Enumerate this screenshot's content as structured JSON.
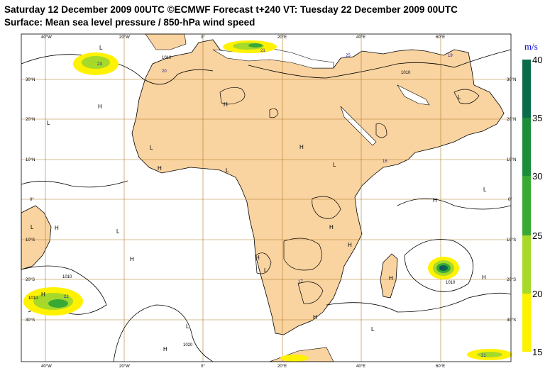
{
  "title_line1": "Saturday 12 December 2009 00UTC ©ECMWF Forecast t+240 VT: Tuesday 22 December 2009 00UTC",
  "title_line2": "Surface: Mean sea level pressure / 850-hPa wind speed",
  "colors": {
    "land": "#f9d3a0",
    "ocean": "#ffffff",
    "grid": "#b07a28",
    "coast": "#000000",
    "wind_15_20": "#fff200",
    "wind_20_25": "#a6d92a",
    "wind_25_30": "#39a935",
    "wind_30_35": "#1b8c3a",
    "wind_35_40": "#0a6b4a",
    "label_blue": "#1a1aa0"
  },
  "longitude_ticks": [
    "40°W",
    "20°W",
    "0°",
    "20°E",
    "40°E",
    "60°E"
  ],
  "latitude_ticks_left": [
    "30°N",
    "20°N",
    "10°N",
    "0°",
    "10°S",
    "20°S",
    "30°S"
  ],
  "latitude_ticks_right": [
    "30°N",
    "20°N",
    "10°N",
    "0°",
    "10°S",
    "20°S",
    "30°S"
  ],
  "pressure_centers": [
    "H",
    "H",
    "H",
    "H",
    "H",
    "H",
    "H",
    "H",
    "H",
    "H",
    "H",
    "H",
    "H",
    "H",
    "H",
    "L",
    "L",
    "L",
    "L",
    "L",
    "L",
    "L",
    "L",
    "L",
    "L",
    "L",
    "L"
  ],
  "isobar_labels": [
    "1010",
    "1010",
    "1020",
    "1010",
    "1010",
    "1010"
  ],
  "wind_labels": [
    "23",
    "21",
    "20",
    "25",
    "19",
    "16",
    "17",
    "22",
    "21",
    "20"
  ],
  "colorbar": {
    "unit": "m/s",
    "levels": [
      "40",
      "35",
      "30",
      "25",
      "20",
      "15"
    ]
  }
}
